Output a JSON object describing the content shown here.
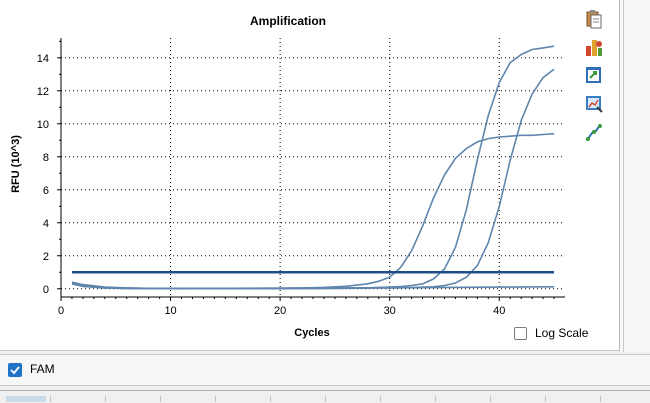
{
  "toolbar": {
    "icons": [
      "copy-icon",
      "chart-settings-icon",
      "export-icon",
      "zoom-icon",
      "curve-fit-icon"
    ]
  },
  "channel": {
    "label": "FAM",
    "checked": true,
    "color": "#1f74c8"
  },
  "log_scale": {
    "label": "Log Scale",
    "checked": false
  },
  "chart_data": {
    "type": "line",
    "title": "Amplification",
    "xlabel": "Cycles",
    "ylabel": "RFU (10^3)",
    "xlim": [
      0,
      46
    ],
    "ylim": [
      -0.5,
      15.2
    ],
    "x_ticks": [
      0,
      10,
      20,
      30,
      40
    ],
    "y_ticks": [
      0,
      2,
      4,
      6,
      8,
      10,
      12,
      14
    ],
    "grid": true,
    "threshold": 1.0,
    "series_color": "#5f86ad",
    "threshold_color": "#1f4e86",
    "series": [
      {
        "x": [
          1,
          2,
          4,
          6,
          8,
          10,
          12,
          14,
          16,
          18,
          20,
          22,
          24,
          26,
          28,
          29,
          30,
          31,
          32,
          33,
          34,
          35,
          36,
          37,
          38,
          39,
          40,
          41,
          42,
          43,
          44,
          45
        ],
        "values": [
          0.4,
          0.25,
          0.1,
          0.05,
          0.03,
          0.02,
          0.02,
          0.02,
          0.02,
          0.02,
          0.03,
          0.05,
          0.08,
          0.15,
          0.3,
          0.45,
          0.7,
          1.3,
          2.3,
          3.8,
          5.5,
          6.9,
          7.9,
          8.5,
          8.9,
          9.1,
          9.2,
          9.25,
          9.3,
          9.3,
          9.35,
          9.4
        ]
      },
      {
        "x": [
          1,
          2,
          4,
          6,
          8,
          10,
          12,
          14,
          16,
          18,
          20,
          22,
          24,
          26,
          28,
          30,
          31,
          32,
          33,
          34,
          35,
          36,
          37,
          38,
          39,
          40,
          41,
          42,
          43,
          44,
          45
        ],
        "values": [
          0.3,
          0.15,
          0.05,
          0.02,
          0.01,
          0.01,
          0.01,
          0.01,
          0.01,
          0.01,
          0.01,
          0.02,
          0.03,
          0.04,
          0.06,
          0.1,
          0.13,
          0.2,
          0.3,
          0.6,
          1.2,
          2.5,
          4.8,
          7.8,
          10.5,
          12.5,
          13.7,
          14.2,
          14.5,
          14.6,
          14.7
        ]
      },
      {
        "x": [
          1,
          2,
          4,
          6,
          8,
          10,
          12,
          14,
          16,
          18,
          20,
          22,
          24,
          26,
          28,
          30,
          32,
          34,
          35,
          36,
          37,
          38,
          39,
          40,
          41,
          42,
          43,
          44,
          45
        ],
        "values": [
          0.3,
          0.15,
          0.05,
          0.02,
          0.01,
          0.01,
          0.01,
          0.01,
          0.01,
          0.01,
          0.01,
          0.02,
          0.02,
          0.03,
          0.04,
          0.05,
          0.07,
          0.12,
          0.2,
          0.35,
          0.7,
          1.4,
          2.8,
          5.0,
          7.8,
          10.2,
          11.8,
          12.8,
          13.3
        ]
      },
      {
        "x": [
          1,
          2,
          4,
          6,
          8,
          10,
          15,
          20,
          25,
          30,
          35,
          40,
          45
        ],
        "values": [
          0.35,
          0.2,
          0.08,
          0.04,
          0.02,
          0.02,
          0.03,
          0.04,
          0.05,
          0.06,
          0.08,
          0.1,
          0.12
        ]
      }
    ]
  }
}
